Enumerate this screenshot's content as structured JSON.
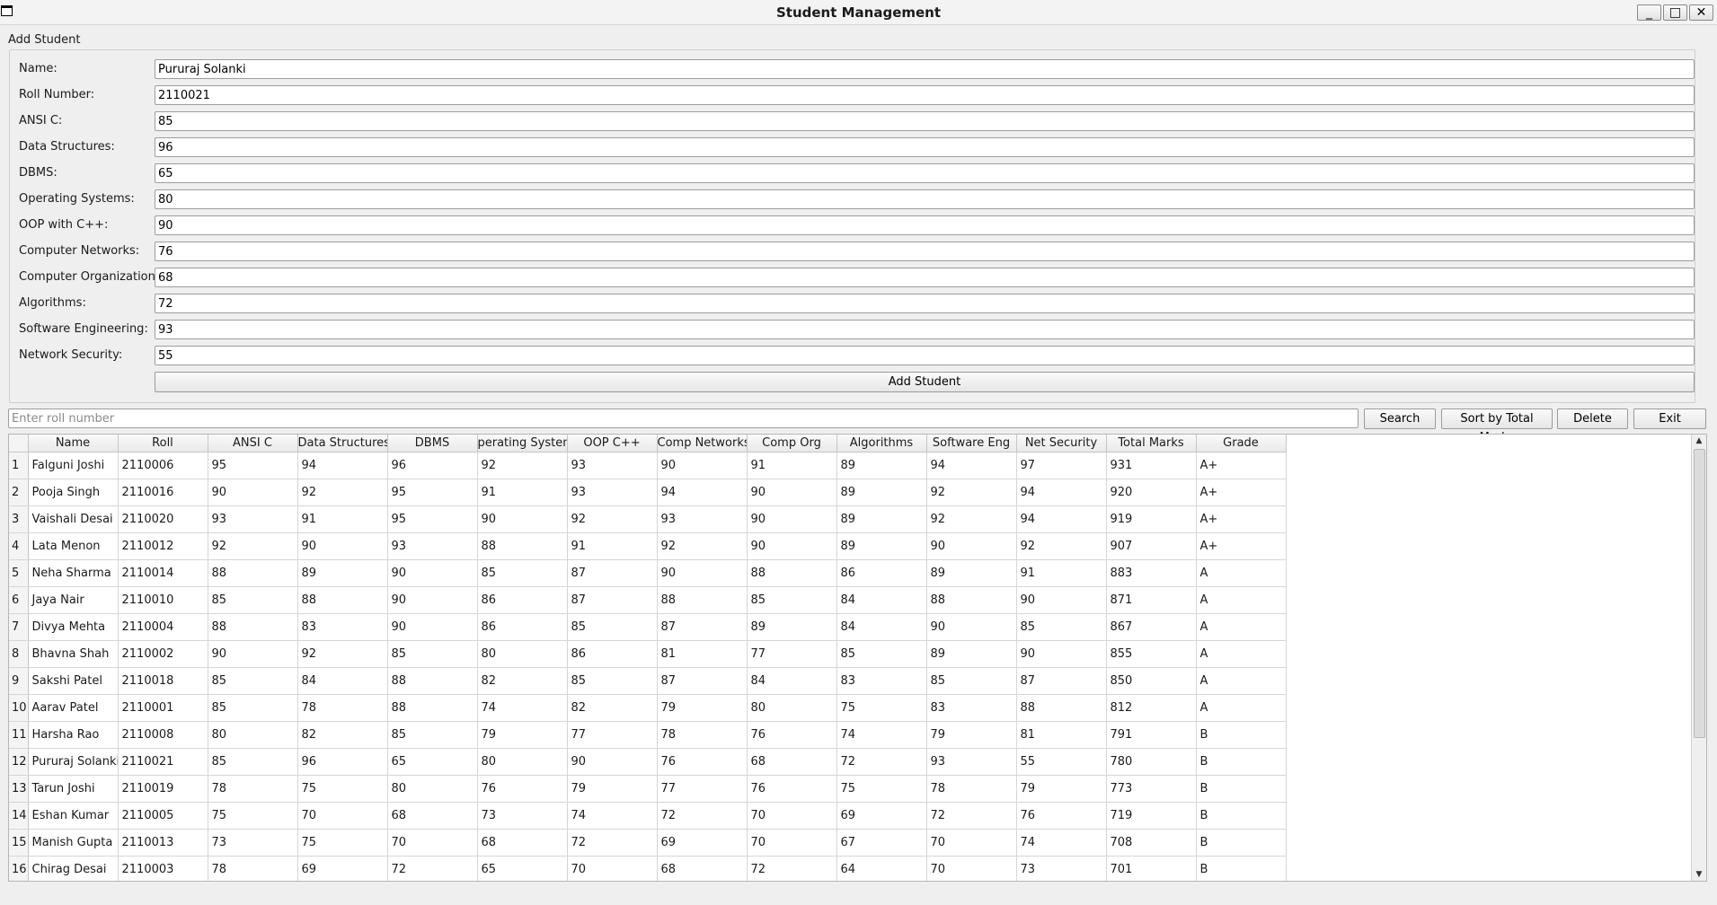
{
  "window": {
    "title": "Student Management",
    "minimize_glyph": "_",
    "maximize_glyph": "□",
    "close_glyph": "✕"
  },
  "form": {
    "group_title": "Add Student",
    "fields": [
      {
        "label": "Name:",
        "value": "Pururaj Solanki"
      },
      {
        "label": "Roll Number:",
        "value": "2110021"
      },
      {
        "label": "ANSI C:",
        "value": "85"
      },
      {
        "label": "Data Structures:",
        "value": "96"
      },
      {
        "label": "DBMS:",
        "value": "65"
      },
      {
        "label": "Operating Systems:",
        "value": "80"
      },
      {
        "label": "OOP with C++:",
        "value": "90"
      },
      {
        "label": "Computer Networks:",
        "value": "76"
      },
      {
        "label": "Computer Organization:",
        "value": "68"
      },
      {
        "label": "Algorithms:",
        "value": "72"
      },
      {
        "label": "Software Engineering:",
        "value": "93"
      },
      {
        "label": "Network Security:",
        "value": "55"
      }
    ],
    "submit_label": "Add Student"
  },
  "toolbar": {
    "search_placeholder": "Enter roll number",
    "search_label": "Search",
    "sort_label": "Sort by Total Marks",
    "delete_label": "Delete",
    "exit_label": "Exit"
  },
  "table": {
    "columns": [
      "Name",
      "Roll",
      "ANSI C",
      "Data Structures",
      "DBMS",
      "perating System",
      "OOP C++",
      "Comp Networks",
      "Comp Org",
      "Algorithms",
      "Software Eng",
      "Net Security",
      "Total Marks",
      "Grade"
    ],
    "rows": [
      {
        "index": "1",
        "cells": [
          "Falguni Joshi",
          "2110006",
          "95",
          "94",
          "96",
          "92",
          "93",
          "90",
          "91",
          "89",
          "94",
          "97",
          "931",
          "A+"
        ]
      },
      {
        "index": "2",
        "cells": [
          "Pooja Singh",
          "2110016",
          "90",
          "92",
          "95",
          "91",
          "93",
          "94",
          "90",
          "89",
          "92",
          "94",
          "920",
          "A+"
        ]
      },
      {
        "index": "3",
        "cells": [
          "Vaishali Desai",
          "2110020",
          "93",
          "91",
          "95",
          "90",
          "92",
          "93",
          "90",
          "89",
          "92",
          "94",
          "919",
          "A+"
        ]
      },
      {
        "index": "4",
        "cells": [
          "Lata Menon",
          "2110012",
          "92",
          "90",
          "93",
          "88",
          "91",
          "92",
          "90",
          "89",
          "90",
          "92",
          "907",
          "A+"
        ]
      },
      {
        "index": "5",
        "cells": [
          "Neha Sharma",
          "2110014",
          "88",
          "89",
          "90",
          "85",
          "87",
          "90",
          "88",
          "86",
          "89",
          "91",
          "883",
          "A"
        ]
      },
      {
        "index": "6",
        "cells": [
          "Jaya Nair",
          "2110010",
          "85",
          "88",
          "90",
          "86",
          "87",
          "88",
          "85",
          "84",
          "88",
          "90",
          "871",
          "A"
        ]
      },
      {
        "index": "7",
        "cells": [
          "Divya Mehta",
          "2110004",
          "88",
          "83",
          "90",
          "86",
          "85",
          "87",
          "89",
          "84",
          "90",
          "85",
          "867",
          "A"
        ]
      },
      {
        "index": "8",
        "cells": [
          "Bhavna Shah",
          "2110002",
          "90",
          "92",
          "85",
          "80",
          "86",
          "81",
          "77",
          "85",
          "89",
          "90",
          "855",
          "A"
        ]
      },
      {
        "index": "9",
        "cells": [
          "Sakshi Patel",
          "2110018",
          "85",
          "84",
          "88",
          "82",
          "85",
          "87",
          "84",
          "83",
          "85",
          "87",
          "850",
          "A"
        ]
      },
      {
        "index": "10",
        "cells": [
          "Aarav Patel",
          "2110001",
          "85",
          "78",
          "88",
          "74",
          "82",
          "79",
          "80",
          "75",
          "83",
          "88",
          "812",
          "A"
        ]
      },
      {
        "index": "11",
        "cells": [
          "Harsha Rao",
          "2110008",
          "80",
          "82",
          "85",
          "79",
          "77",
          "78",
          "76",
          "74",
          "79",
          "81",
          "791",
          "B"
        ]
      },
      {
        "index": "12",
        "cells": [
          "Pururaj Solanki",
          "2110021",
          "85",
          "96",
          "65",
          "80",
          "90",
          "76",
          "68",
          "72",
          "93",
          "55",
          "780",
          "B"
        ]
      },
      {
        "index": "13",
        "cells": [
          "Tarun Joshi",
          "2110019",
          "78",
          "75",
          "80",
          "76",
          "79",
          "77",
          "76",
          "75",
          "78",
          "79",
          "773",
          "B"
        ]
      },
      {
        "index": "14",
        "cells": [
          "Eshan Kumar",
          "2110005",
          "75",
          "70",
          "68",
          "73",
          "74",
          "72",
          "70",
          "69",
          "72",
          "76",
          "719",
          "B"
        ]
      },
      {
        "index": "15",
        "cells": [
          "Manish Gupta",
          "2110013",
          "73",
          "75",
          "70",
          "68",
          "72",
          "69",
          "70",
          "67",
          "70",
          "74",
          "708",
          "B"
        ]
      },
      {
        "index": "16",
        "cells": [
          "Chirag Desai",
          "2110003",
          "78",
          "69",
          "72",
          "65",
          "70",
          "68",
          "72",
          "64",
          "70",
          "73",
          "701",
          "B"
        ]
      }
    ]
  },
  "scrollbar": {
    "up_glyph": "▲",
    "down_glyph": "▼"
  }
}
